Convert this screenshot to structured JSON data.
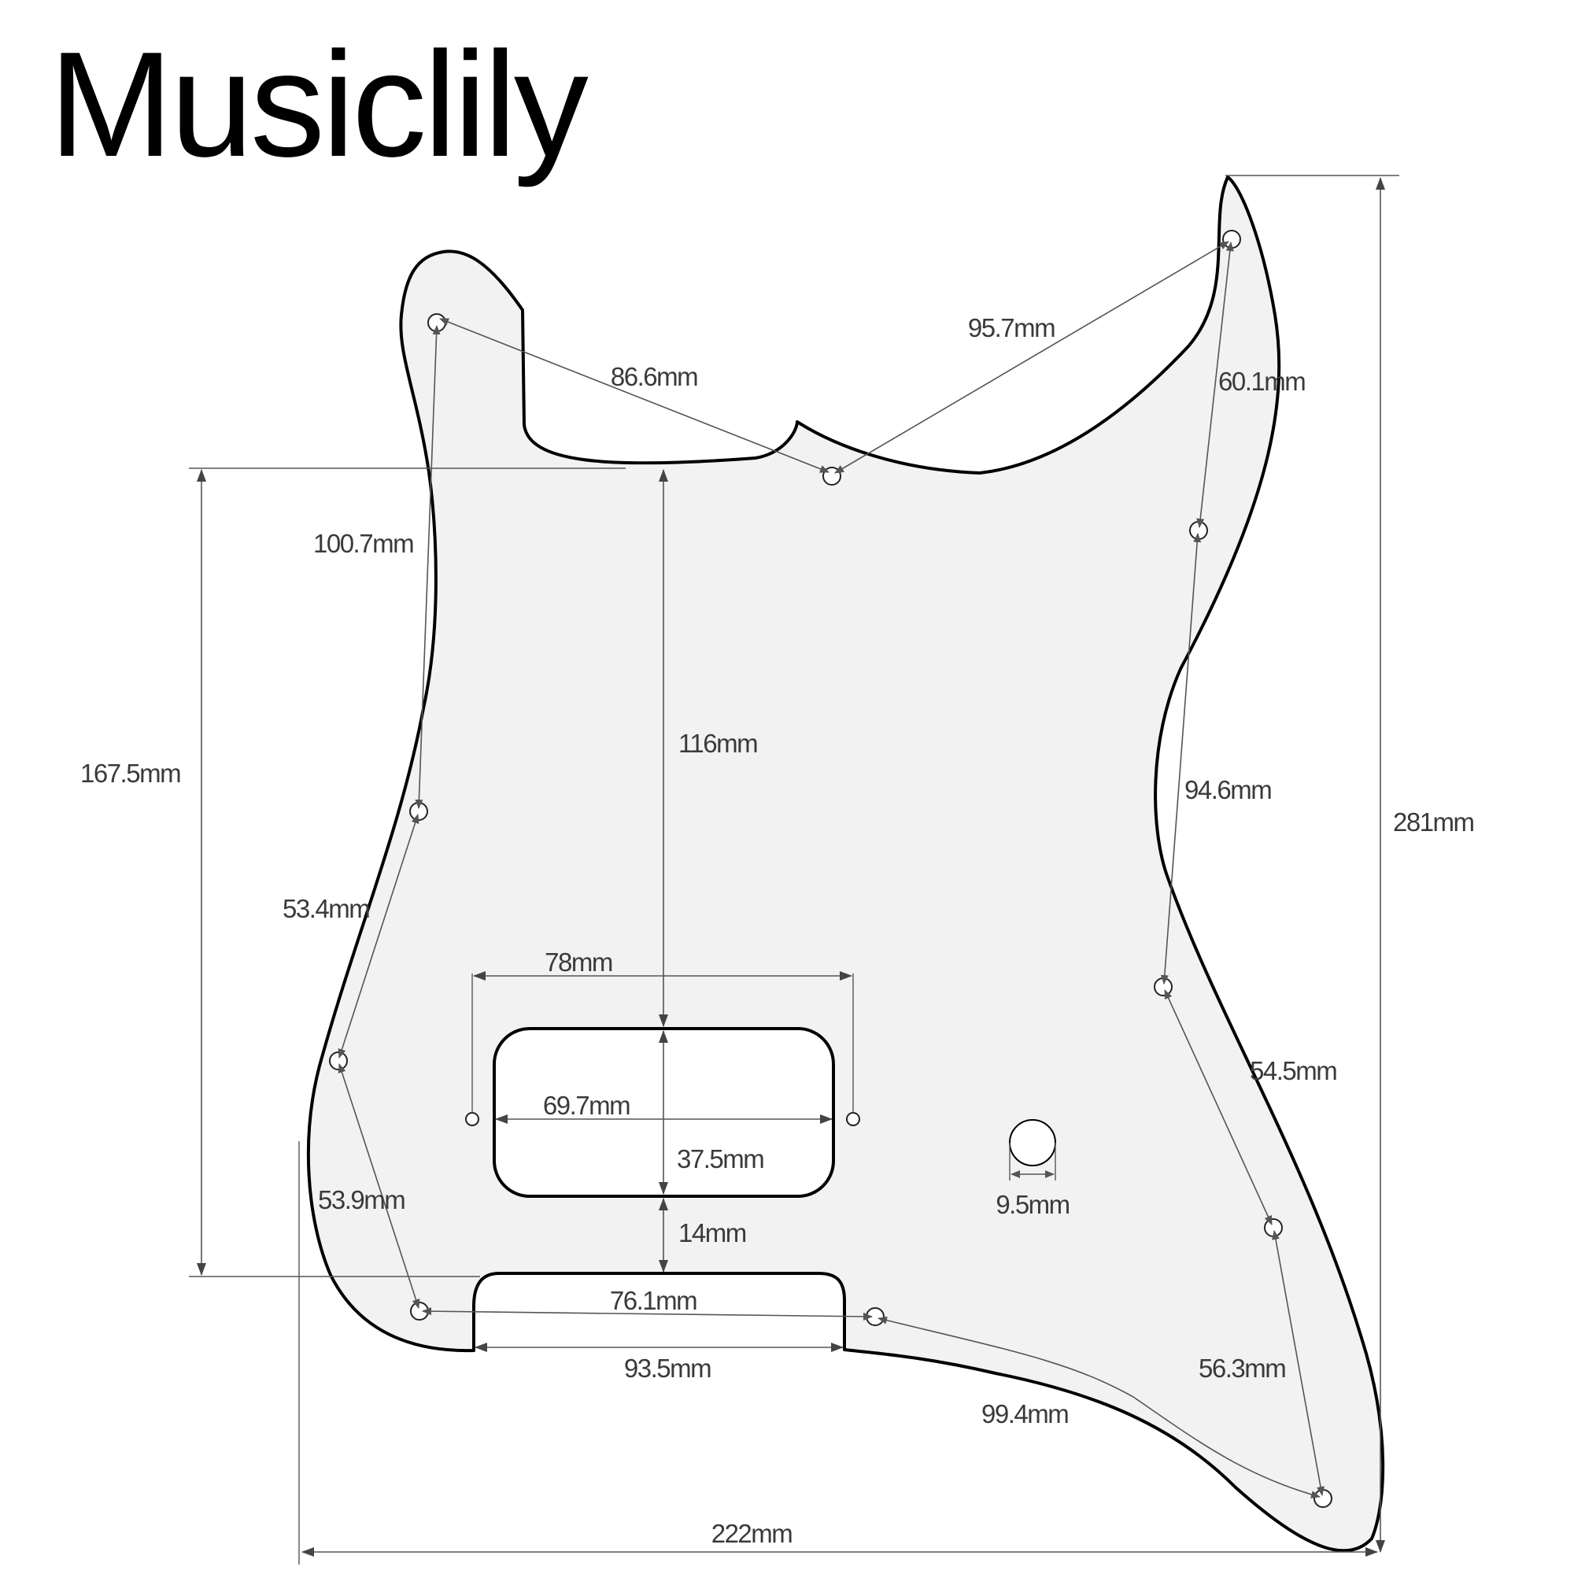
{
  "brand": "Musiclily",
  "colors": {
    "pickguard_fill": "#f2f2f2",
    "pickguard_outline": "#000000",
    "dimension_line": "#555555",
    "label_text": "#3a3a3a"
  },
  "dimensions": {
    "overall_width": "222mm",
    "overall_height": "281mm",
    "neck_to_bottom_cutout": "167.5mm",
    "neck_to_pickup": "116mm",
    "pickup_to_bottom": "14mm",
    "pickup_screw_spacing": "78mm",
    "pickup_rout_width": "69.7mm",
    "pickup_rout_height": "37.5mm",
    "bottom_cutout_inner": "76.1mm",
    "bottom_cutout_width": "93.5mm",
    "control_hole_diameter": "9.5mm",
    "hole_upper_left_to_neck": "86.6mm",
    "hole_neck_to_horn": "95.7mm",
    "hole_horn_to_right_upper": "60.1mm",
    "hole_left_vertical": "100.7mm",
    "hole_right_vertical": "94.6mm",
    "hole_left_mid": "53.4mm",
    "hole_left_low": "53.9mm",
    "hole_right_mid": "54.5mm",
    "hole_right_low": "56.3mm",
    "hole_bottom_diagonal": "99.4mm"
  }
}
